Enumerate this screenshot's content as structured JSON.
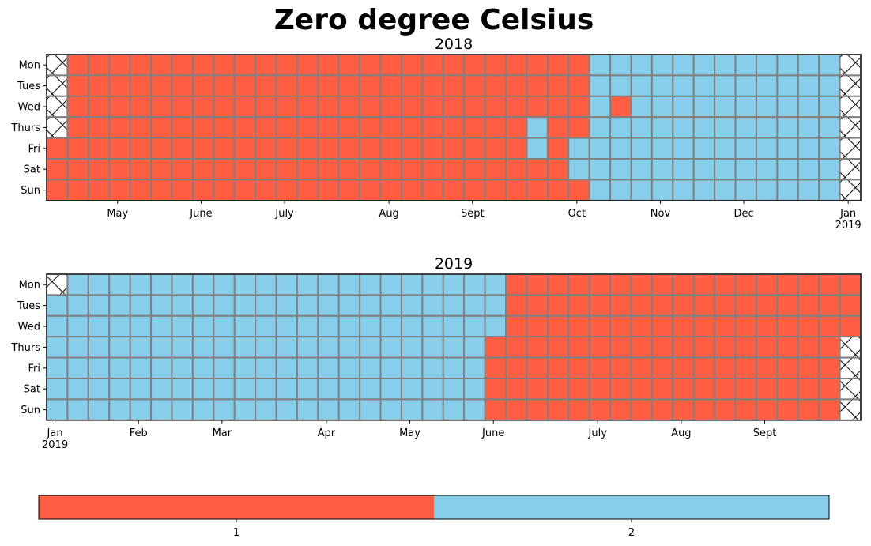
{
  "chart_data": {
    "type": "heatmap",
    "title": "Zero degree Celsius",
    "colors": {
      "1": "#FF5E43",
      "2": "#87CEEB",
      "grid": "#808080",
      "missing": "#ffffff"
    },
    "day_labels": [
      "Mon",
      "Tues",
      "Wed",
      "Thurs",
      "Fri",
      "Sat",
      "Sun"
    ],
    "panels": [
      {
        "subtitle": "2018",
        "first_week_start": "2018-04-09",
        "weeks": 39,
        "month_ticks": [
          {
            "label": "May",
            "week": 3.4
          },
          {
            "label": "June",
            "week": 7.4
          },
          {
            "label": "July",
            "week": 11.4
          },
          {
            "label": "Aug",
            "week": 16.4
          },
          {
            "label": "Sept",
            "week": 20.4
          },
          {
            "label": "Oct",
            "week": 25.4
          },
          {
            "label": "Nov",
            "week": 29.4
          },
          {
            "label": "Dec",
            "week": 33.4
          },
          {
            "label": "Jan\n2019",
            "week": 38.4
          }
        ],
        "columns": [
          "xxxx111",
          "1111111",
          "1111111",
          "1111111",
          "1111111",
          "1111111",
          "1111111",
          "1111111",
          "1111111",
          "1111111",
          "1111111",
          "1111111",
          "1111111",
          "1111111",
          "1111111",
          "1111111",
          "1111111",
          "1111111",
          "1111111",
          "1111111",
          "1111111",
          "1111111",
          "1111111",
          "1112211",
          "1111111",
          "1111221",
          "2222222",
          "2212222",
          "2222222",
          "2222222",
          "2222222",
          "2222222",
          "2222222",
          "2222222",
          "2222222",
          "2222222",
          "2222222",
          "2222222",
          "xxxxxxx"
        ]
      },
      {
        "subtitle": "2019",
        "first_week_start": "2018-12-31",
        "weeks": 39,
        "month_ticks": [
          {
            "label": "Jan\n2019",
            "week": 0.4
          },
          {
            "label": "Feb",
            "week": 4.4
          },
          {
            "label": "Mar",
            "week": 8.4
          },
          {
            "label": "Apr",
            "week": 13.4
          },
          {
            "label": "May",
            "week": 17.4
          },
          {
            "label": "June",
            "week": 21.4
          },
          {
            "label": "July",
            "week": 26.4
          },
          {
            "label": "Aug",
            "week": 30.4
          },
          {
            "label": "Sept",
            "week": 34.4
          }
        ],
        "columns": [
          "x222222",
          "2222222",
          "2222222",
          "2222222",
          "2222222",
          "2222222",
          "2222222",
          "2222222",
          "2222222",
          "2222222",
          "2222222",
          "2222222",
          "2222222",
          "2222222",
          "2222222",
          "2222222",
          "2222222",
          "2222222",
          "2222222",
          "2222222",
          "2222222",
          "2221111",
          "1111111",
          "1111111",
          "1111111",
          "1111111",
          "1111111",
          "1111111",
          "1111111",
          "1111111",
          "1111111",
          "1111111",
          "1111111",
          "1111111",
          "1111111",
          "1111111",
          "1111111",
          "1111111",
          "111xxxx"
        ]
      }
    ],
    "colorbar": {
      "categories": [
        "1",
        "2"
      ]
    }
  }
}
